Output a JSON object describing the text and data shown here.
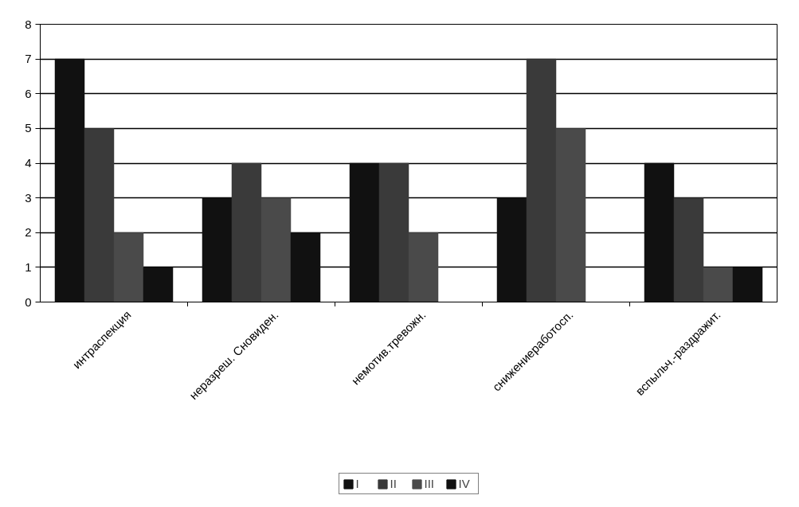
{
  "chart_data": {
    "type": "bar",
    "categories": [
      "интраспекция",
      "неразреш. Сновиден.",
      "немотив.тревожн.",
      "снижениеработосп.",
      "вспыльч.-раздражит."
    ],
    "series": [
      {
        "name": "I",
        "color": "#111111",
        "values": [
          7,
          3,
          4,
          3,
          4
        ]
      },
      {
        "name": "II",
        "color": "#3a3a3a",
        "values": [
          5,
          4,
          4,
          7,
          3
        ]
      },
      {
        "name": "III",
        "color": "#4a4a4a",
        "values": [
          2,
          3,
          2,
          5,
          1
        ]
      },
      {
        "name": "IV",
        "color": "#111111",
        "values": [
          1,
          2,
          0,
          0,
          1
        ]
      }
    ],
    "ylim": [
      0,
      8
    ],
    "yticks": [
      0,
      1,
      2,
      3,
      4,
      5,
      6,
      7,
      8
    ],
    "grid": "y",
    "legend": "bottom"
  }
}
